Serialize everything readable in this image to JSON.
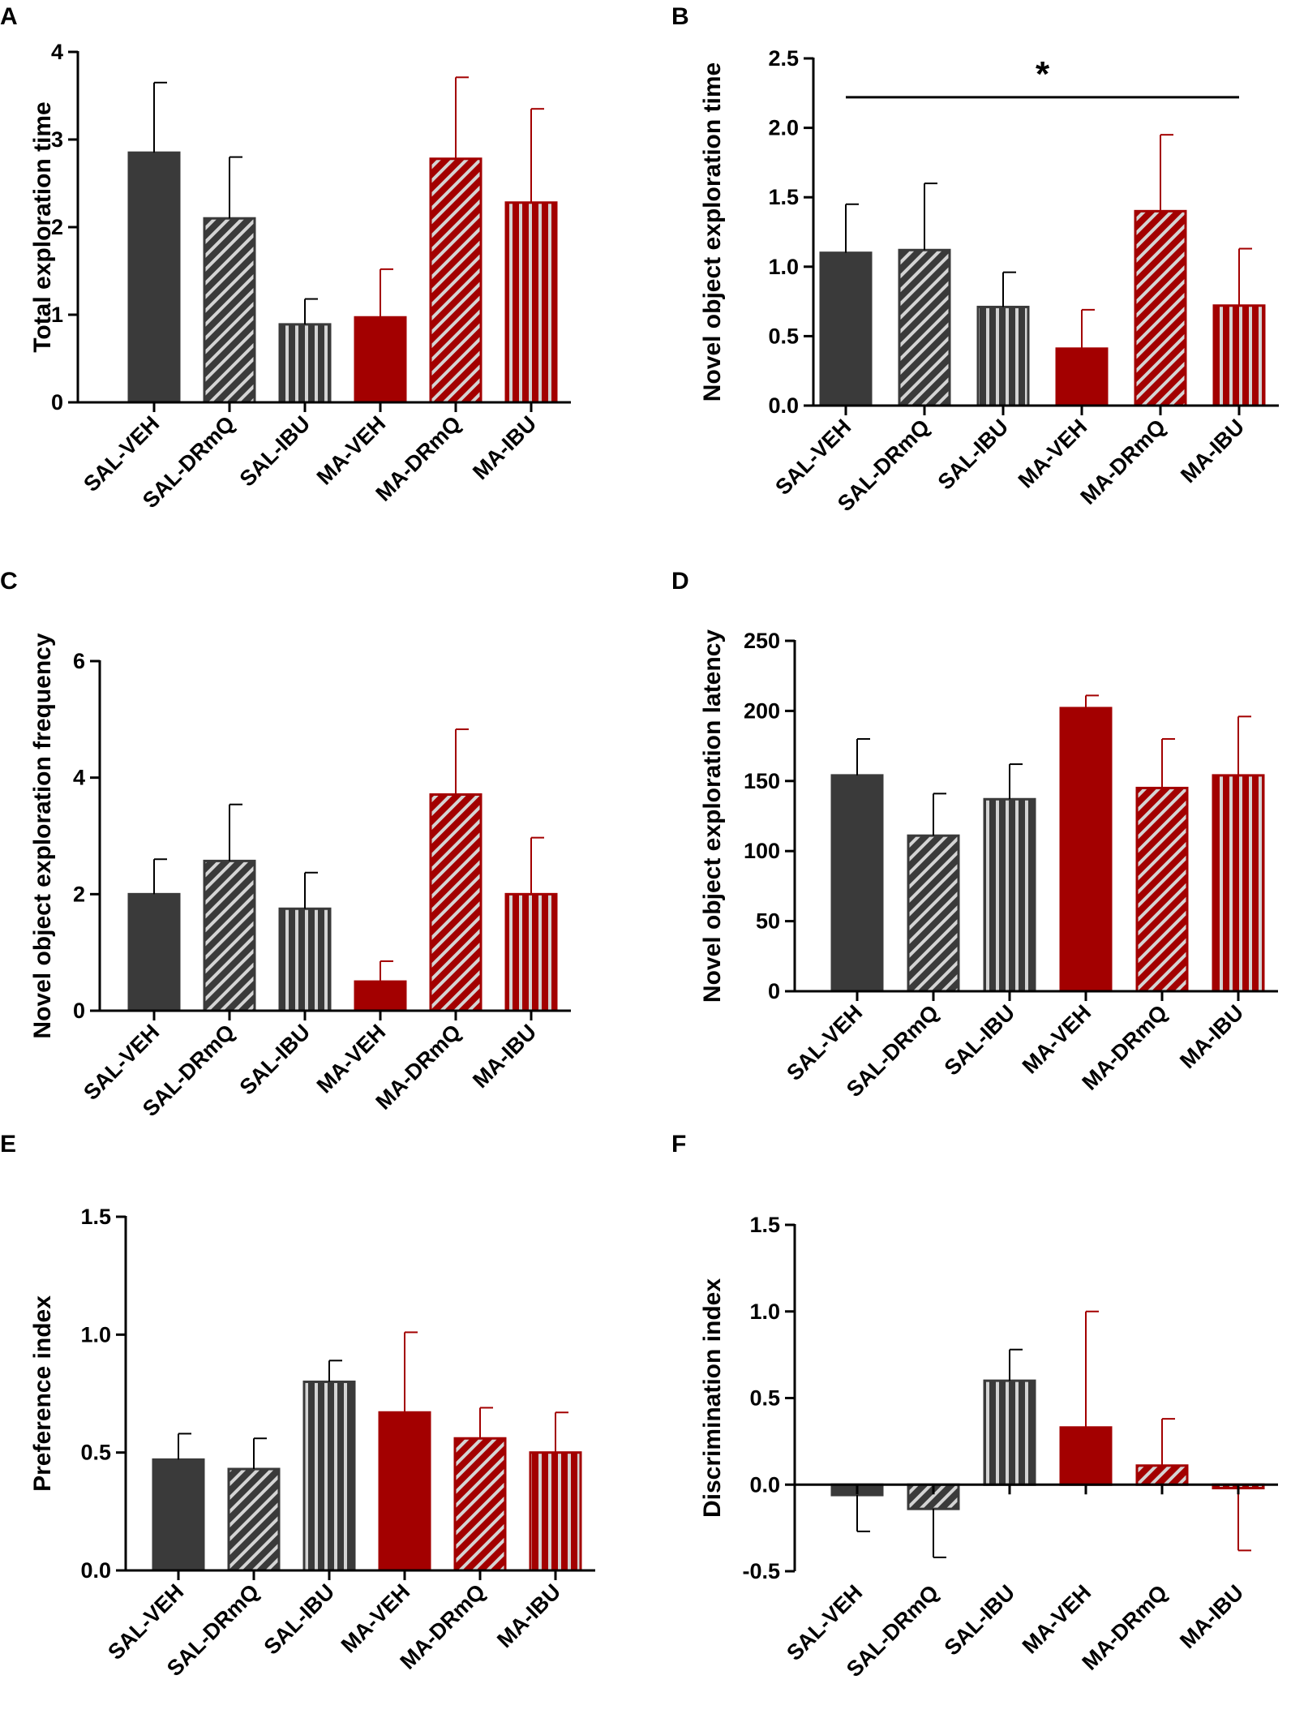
{
  "figure": {
    "title": ""
  },
  "colors": {
    "saline": "#3a3a3a",
    "ma": "#a30000",
    "stripe": "#d4d4d4",
    "axis": "#000000"
  },
  "chart_data": [
    {
      "panel": "A",
      "type": "bar",
      "title": "",
      "ylabel": "Total exploration time",
      "xlabel": "",
      "categories": [
        "SAL-VEH",
        "SAL-DRmQ",
        "SAL-IBU",
        "MA-VEH",
        "MA-DRmQ",
        "MA-IBU"
      ],
      "values": [
        2.85,
        2.1,
        0.89,
        0.97,
        2.78,
        2.28
      ],
      "errors": [
        0.8,
        0.7,
        0.29,
        0.55,
        0.93,
        1.07
      ],
      "patterns": [
        "solid",
        "diagonal",
        "vertical",
        "solid",
        "diagonal",
        "vertical"
      ],
      "groups": [
        "saline",
        "saline",
        "saline",
        "ma",
        "ma",
        "ma"
      ],
      "ylim": [
        0,
        4
      ],
      "yticks": [
        0,
        1,
        2,
        3,
        4
      ],
      "ytick_labels": [
        "0",
        "1",
        "2",
        "3",
        "4"
      ],
      "grid": false,
      "significance": []
    },
    {
      "panel": "B",
      "type": "bar",
      "title": "",
      "ylabel": "Novel object exploration time",
      "xlabel": "",
      "categories": [
        "SAL-VEH",
        "SAL-DRmQ",
        "SAL-IBU",
        "MA-VEH",
        "MA-DRmQ",
        "MA-IBU"
      ],
      "values": [
        1.1,
        1.12,
        0.71,
        0.41,
        1.4,
        0.72
      ],
      "errors": [
        0.35,
        0.48,
        0.25,
        0.28,
        0.55,
        0.41
      ],
      "patterns": [
        "solid",
        "diagonal",
        "vertical",
        "solid",
        "diagonal",
        "vertical"
      ],
      "groups": [
        "saline",
        "saline",
        "saline",
        "ma",
        "ma",
        "ma"
      ],
      "ylim": [
        0,
        2.5
      ],
      "yticks": [
        0,
        0.5,
        1,
        1.5,
        2,
        2.5
      ],
      "ytick_labels": [
        "0.0",
        "0.5",
        "1.0",
        "1.5",
        "2.0",
        "2.5"
      ],
      "grid": false,
      "significance": [
        {
          "from": 0,
          "to": 5,
          "y": 2.22,
          "label": "*"
        }
      ]
    },
    {
      "panel": "C",
      "type": "bar",
      "title": "",
      "ylabel": "Novel object exploration frequency",
      "xlabel": "",
      "categories": [
        "SAL-VEH",
        "SAL-DRmQ",
        "SAL-IBU",
        "MA-VEH",
        "MA-DRmQ",
        "MA-IBU"
      ],
      "values": [
        2.0,
        2.57,
        1.75,
        0.5,
        3.71,
        2.0
      ],
      "errors": [
        0.6,
        0.97,
        0.62,
        0.35,
        1.12,
        0.97
      ],
      "patterns": [
        "solid",
        "diagonal",
        "vertical",
        "solid",
        "diagonal",
        "vertical"
      ],
      "groups": [
        "saline",
        "saline",
        "saline",
        "ma",
        "ma",
        "ma"
      ],
      "ylim": [
        0,
        6
      ],
      "yticks": [
        0,
        2,
        4,
        6
      ],
      "ytick_labels": [
        "0",
        "2",
        "4",
        "6"
      ],
      "grid": false,
      "significance": []
    },
    {
      "panel": "D",
      "type": "bar",
      "title": "",
      "ylabel": "Novel object exploration latency",
      "xlabel": "",
      "categories": [
        "SAL-VEH",
        "SAL-DRmQ",
        "SAL-IBU",
        "MA-VEH",
        "MA-DRmQ",
        "MA-IBU"
      ],
      "values": [
        154,
        111,
        137,
        202,
        145,
        154
      ],
      "errors": [
        26,
        30,
        25,
        9,
        35,
        42
      ],
      "patterns": [
        "solid",
        "diagonal",
        "vertical",
        "solid",
        "diagonal",
        "vertical"
      ],
      "groups": [
        "saline",
        "saline",
        "saline",
        "ma",
        "ma",
        "ma"
      ],
      "ylim": [
        0,
        250
      ],
      "yticks": [
        0,
        50,
        100,
        150,
        200,
        250
      ],
      "ytick_labels": [
        "0",
        "50",
        "100",
        "150",
        "200",
        "250"
      ],
      "grid": false,
      "significance": []
    },
    {
      "panel": "E",
      "type": "bar",
      "title": "",
      "ylabel": "Preference index",
      "xlabel": "",
      "categories": [
        "SAL-VEH",
        "SAL-DRmQ",
        "SAL-IBU",
        "MA-VEH",
        "MA-DRmQ",
        "MA-IBU"
      ],
      "values": [
        0.47,
        0.43,
        0.8,
        0.67,
        0.56,
        0.5
      ],
      "errors": [
        0.11,
        0.13,
        0.09,
        0.34,
        0.13,
        0.17
      ],
      "patterns": [
        "solid",
        "diagonal",
        "vertical",
        "solid",
        "diagonal",
        "vertical"
      ],
      "groups": [
        "saline",
        "saline",
        "saline",
        "ma",
        "ma",
        "ma"
      ],
      "ylim": [
        0,
        1.5
      ],
      "yticks": [
        0,
        0.5,
        1,
        1.5
      ],
      "ytick_labels": [
        "0.0",
        "0.5",
        "1.0",
        "1.5"
      ],
      "grid": false,
      "significance": []
    },
    {
      "panel": "F",
      "type": "bar",
      "title": "",
      "ylabel": "Discrimination index",
      "xlabel": "",
      "categories": [
        "SAL-VEH",
        "SAL-DRmQ",
        "SAL-IBU",
        "MA-VEH",
        "MA-DRmQ",
        "MA-IBU"
      ],
      "values": [
        -0.06,
        -0.14,
        0.6,
        0.33,
        0.11,
        -0.02
      ],
      "errors": [
        0.21,
        0.28,
        0.18,
        0.67,
        0.27,
        0.36
      ],
      "patterns": [
        "solid",
        "diagonal",
        "vertical",
        "solid",
        "diagonal",
        "vertical"
      ],
      "groups": [
        "saline",
        "saline",
        "saline",
        "ma",
        "ma",
        "ma"
      ],
      "ylim": [
        -0.5,
        1.5
      ],
      "yticks": [
        -0.5,
        0,
        0.5,
        1,
        1.5
      ],
      "ytick_labels": [
        "-0.5",
        "0.0",
        "0.5",
        "1.0",
        "1.5"
      ],
      "grid": false,
      "significance": []
    }
  ]
}
